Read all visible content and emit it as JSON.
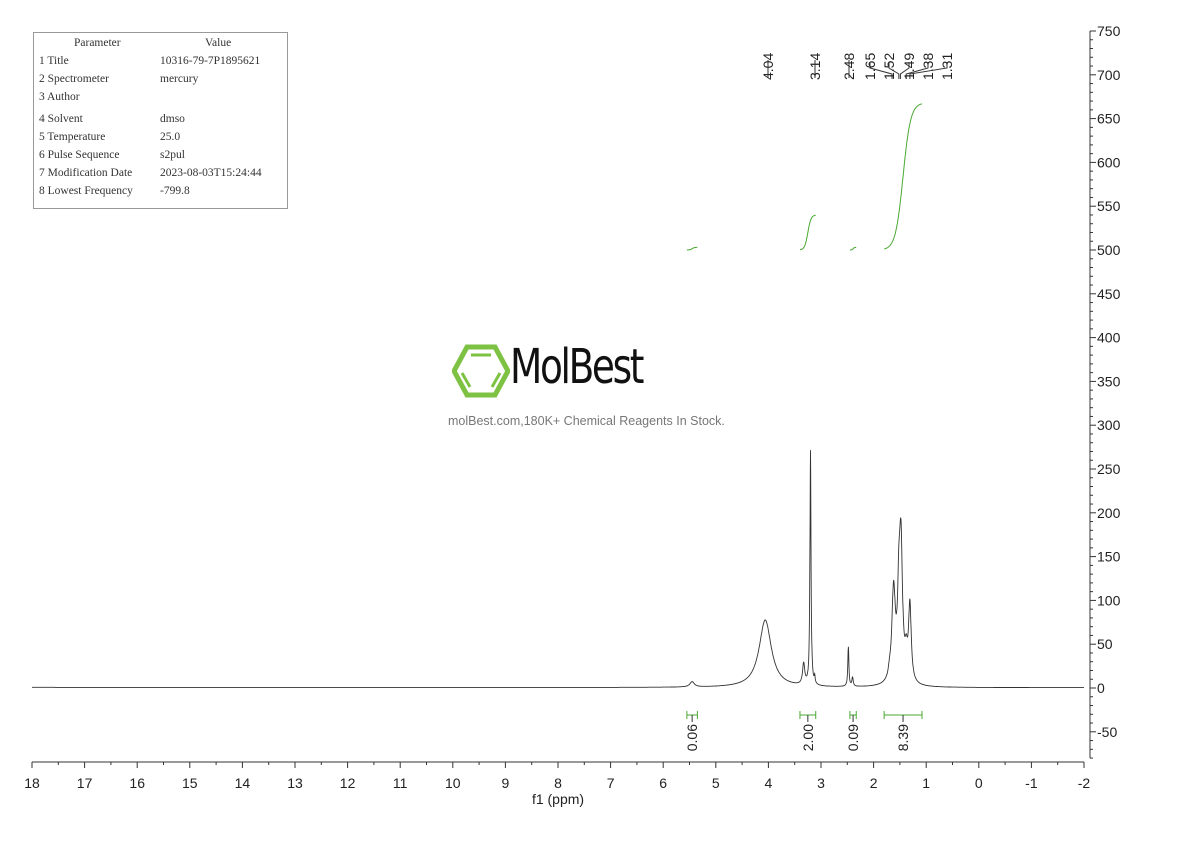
{
  "parameters_table": {
    "headers": [
      "Parameter",
      "Value"
    ],
    "rows": [
      {
        "label": "1 Title",
        "value": "10316-79-7P1895621"
      },
      {
        "label": "2 Spectrometer",
        "value": "mercury"
      },
      {
        "label": "3 Author",
        "value": ""
      },
      {
        "label": "4 Solvent",
        "value": "dmso"
      },
      {
        "label": "5 Temperature",
        "value": "25.0"
      },
      {
        "label": "6 Pulse Sequence",
        "value": "s2pul"
      },
      {
        "label": "7 Modification Date",
        "value": "2023-08-03T15:24:44"
      },
      {
        "label": "8 Lowest Frequency",
        "value": "-799.8"
      }
    ]
  },
  "watermark": {
    "logo_text": "MolBest",
    "tagline": "molBest.com,180K+ Chemical Reagents In Stock.",
    "logo_color": "#7dc242"
  },
  "chart_data": {
    "type": "line",
    "xlabel": "f1 (ppm)",
    "ylabel": "",
    "xlim": [
      18,
      -2
    ],
    "ylim": [
      -80,
      750
    ],
    "x_reversed": true,
    "x_ticks": [
      18,
      17,
      16,
      15,
      14,
      13,
      12,
      11,
      10,
      9,
      8,
      7,
      6,
      5,
      4,
      3,
      2,
      1,
      0,
      -1,
      -2
    ],
    "y_ticks": [
      -50,
      0,
      50,
      100,
      150,
      200,
      250,
      300,
      350,
      400,
      450,
      500,
      550,
      600,
      650,
      700,
      750
    ],
    "y_axis_side": "right",
    "grid": false,
    "line_color": "#333333",
    "integral_color": "#4aa832",
    "peaks": [
      {
        "ppm": 5.45,
        "height": 6,
        "width": 0.05
      },
      {
        "ppm": 4.06,
        "height": 77,
        "width": 0.14
      },
      {
        "ppm": 3.33,
        "height": 24,
        "width": 0.025
      },
      {
        "ppm": 3.2,
        "height": 268,
        "width": 0.012
      },
      {
        "ppm": 3.12,
        "height": 8,
        "width": 0.01
      },
      {
        "ppm": 2.48,
        "height": 45,
        "width": 0.012
      },
      {
        "ppm": 2.4,
        "height": 10,
        "width": 0.015
      },
      {
        "ppm": 1.7,
        "height": 6,
        "width": 0.02
      },
      {
        "ppm": 1.62,
        "height": 105,
        "width": 0.04
      },
      {
        "ppm": 1.52,
        "height": 80,
        "width": 0.03
      },
      {
        "ppm": 1.48,
        "height": 150,
        "width": 0.035
      },
      {
        "ppm": 1.38,
        "height": 25,
        "width": 0.03
      },
      {
        "ppm": 1.31,
        "height": 88,
        "width": 0.03
      }
    ],
    "peak_labels": [
      "4.04",
      "3.14",
      "2.48",
      "1.65",
      "1.52",
      "1.49",
      "1.38",
      "1.31"
    ],
    "peak_label_ppm": [
      4.04,
      3.14,
      2.48,
      1.65,
      1.52,
      1.49,
      1.38,
      1.31
    ],
    "integrals": [
      {
        "from": 5.55,
        "to": 5.35,
        "value": "0.06",
        "start_y": 500,
        "end_y": 503
      },
      {
        "from": 3.4,
        "to": 3.1,
        "value": "2.00",
        "start_y": 500,
        "end_y": 540
      },
      {
        "from": 2.45,
        "to": 2.33,
        "value": "0.09",
        "start_y": 500,
        "end_y": 503
      },
      {
        "from": 1.8,
        "to": 1.08,
        "value": "8.39",
        "start_y": 500,
        "end_y": 668
      }
    ]
  }
}
